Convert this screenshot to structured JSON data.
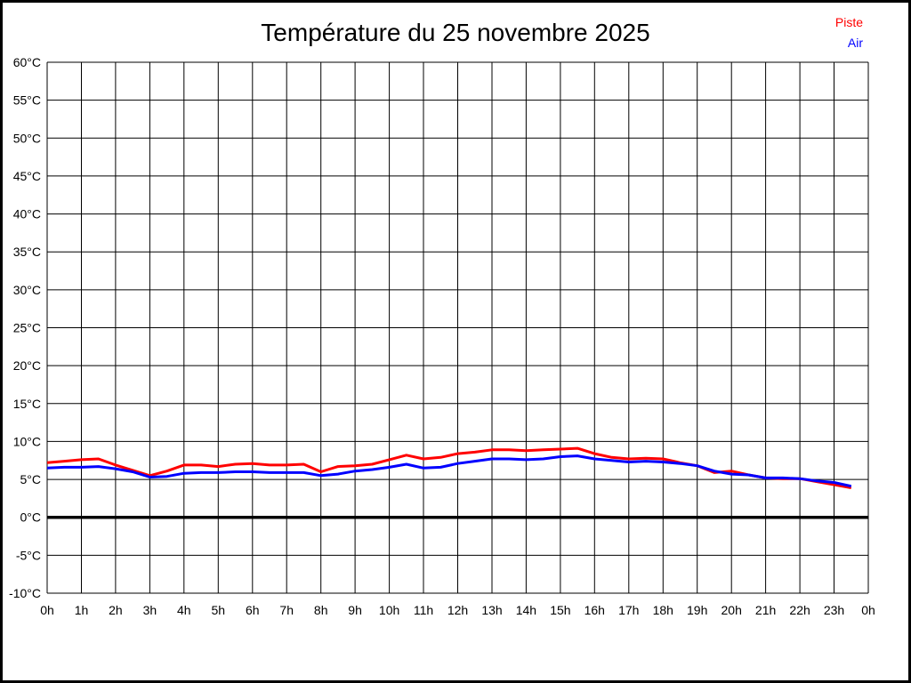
{
  "page": {
    "title": "Température du 25 novembre 2025"
  },
  "legend": {
    "items": [
      {
        "label": "Piste",
        "color": "#ff0000"
      },
      {
        "label": "Air",
        "color": "#0000ff"
      }
    ]
  },
  "chart_data": {
    "type": "line",
    "title": "Température du 25 novembre 2025",
    "xlabel": "",
    "ylabel": "",
    "x_hours": [
      0,
      0.5,
      1,
      1.5,
      2,
      2.5,
      3,
      3.5,
      4,
      4.5,
      5,
      5.5,
      6,
      6.5,
      7,
      7.5,
      8,
      8.5,
      9,
      9.5,
      10,
      10.5,
      11,
      11.5,
      12,
      12.5,
      13,
      13.5,
      14,
      14.5,
      15,
      15.5,
      16,
      16.5,
      17,
      17.5,
      18,
      18.5,
      19,
      19.5,
      20,
      20.5,
      21,
      21.5,
      22,
      22.5,
      23,
      23.5
    ],
    "series": [
      {
        "name": "Piste",
        "color": "#ff0000",
        "values": [
          7.2,
          7.4,
          7.6,
          7.7,
          6.9,
          6.2,
          5.5,
          6.1,
          6.9,
          6.9,
          6.7,
          7.0,
          7.1,
          6.9,
          6.9,
          7.0,
          6.0,
          6.7,
          6.8,
          7.0,
          7.6,
          8.2,
          7.7,
          7.9,
          8.4,
          8.6,
          8.9,
          8.9,
          8.8,
          8.9,
          9.0,
          9.1,
          8.4,
          7.9,
          7.7,
          7.8,
          7.7,
          7.2,
          6.8,
          5.9,
          6.1,
          5.6,
          5.2,
          5.1,
          5.1,
          4.7,
          4.3,
          3.9
        ]
      },
      {
        "name": "Air",
        "color": "#0000ff",
        "values": [
          6.5,
          6.6,
          6.6,
          6.7,
          6.4,
          6.0,
          5.3,
          5.4,
          5.8,
          5.9,
          5.9,
          6.0,
          6.0,
          5.9,
          5.9,
          5.9,
          5.5,
          5.7,
          6.1,
          6.3,
          6.6,
          7.0,
          6.5,
          6.6,
          7.1,
          7.4,
          7.7,
          7.7,
          7.6,
          7.7,
          8.0,
          8.1,
          7.7,
          7.5,
          7.3,
          7.4,
          7.3,
          7.1,
          6.8,
          6.1,
          5.7,
          5.6,
          5.2,
          5.2,
          5.1,
          4.8,
          4.6,
          4.1
        ]
      }
    ],
    "xlabels": [
      "0h",
      "1h",
      "2h",
      "3h",
      "4h",
      "5h",
      "6h",
      "7h",
      "8h",
      "9h",
      "10h",
      "11h",
      "12h",
      "13h",
      "14h",
      "15h",
      "16h",
      "17h",
      "18h",
      "19h",
      "20h",
      "21h",
      "22h",
      "23h",
      "0h"
    ],
    "x_range_hours": [
      0,
      24
    ],
    "ylim": [
      -10,
      60
    ],
    "ytick_step": 5,
    "ytick_suffix": "°C",
    "grid": true,
    "zero_line_bold": true,
    "legend_position": "top-right",
    "colors": {
      "grid": "#000000",
      "text": "#000000",
      "background": "#ffffff"
    }
  }
}
